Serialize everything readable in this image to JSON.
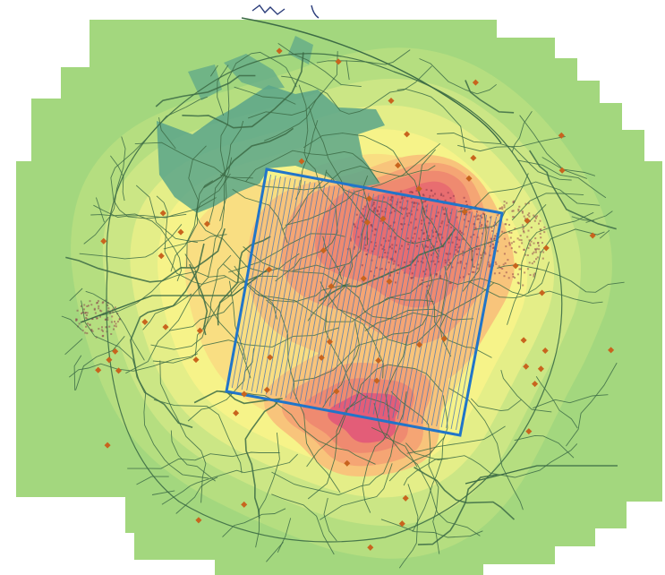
{
  "map": {
    "colors": {
      "background": "#ffffff",
      "heat_ramp": [
        "#a3d77e",
        "#b5de80",
        "#cbe685",
        "#e4ee88",
        "#f6f389",
        "#f9de82",
        "#f8c47b",
        "#f5a574",
        "#ef8a70",
        "#e86d70"
      ],
      "hotspot": "#e35d78",
      "water": "#5aa58a",
      "roads": "#3c6b45",
      "study_area": "#2175c9",
      "transect_lines": "#4f78b0",
      "points": "#c8641e",
      "dense_area": "#8a3a4a"
    },
    "layers": [
      "heat-surface",
      "water-body",
      "road-network",
      "study-area-polygon",
      "transect-lines",
      "sample-points"
    ],
    "sample_point_count": 64,
    "transect_line_count": 48
  }
}
